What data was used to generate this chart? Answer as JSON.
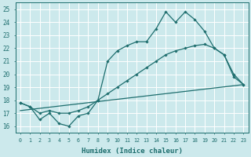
{
  "xlabel": "Humidex (Indice chaleur)",
  "xlim": [
    -0.5,
    23.5
  ],
  "ylim": [
    15.5,
    25.5
  ],
  "yticks": [
    16,
    17,
    18,
    19,
    20,
    21,
    22,
    23,
    24,
    25
  ],
  "xticks": [
    0,
    1,
    2,
    3,
    4,
    5,
    6,
    7,
    8,
    9,
    10,
    11,
    12,
    13,
    14,
    15,
    16,
    17,
    18,
    19,
    20,
    21,
    22,
    23
  ],
  "bg_color": "#cce9ec",
  "grid_color": "#b8d8dc",
  "line_color": "#1e6e6e",
  "line1_x": [
    0,
    1,
    2,
    3,
    4,
    5,
    6,
    7,
    8,
    9,
    10,
    11,
    12,
    13,
    14,
    15,
    16,
    17,
    18,
    19,
    20,
    21,
    22,
    23
  ],
  "line1_y": [
    17.8,
    17.5,
    16.5,
    17.0,
    16.2,
    16.0,
    16.8,
    17.0,
    18.0,
    21.0,
    21.8,
    22.2,
    22.5,
    22.5,
    23.5,
    24.8,
    24.0,
    24.8,
    24.2,
    23.3,
    22.0,
    21.5,
    19.8,
    19.2
  ],
  "line2_x": [
    0,
    1,
    2,
    3,
    4,
    5,
    6,
    7,
    8,
    9,
    10,
    11,
    12,
    13,
    14,
    15,
    16,
    17,
    18,
    19,
    20,
    21,
    22,
    23
  ],
  "line2_y": [
    17.8,
    17.5,
    17.0,
    17.2,
    17.0,
    17.0,
    17.2,
    17.5,
    18.0,
    18.5,
    19.0,
    19.5,
    20.0,
    20.5,
    21.0,
    21.5,
    21.8,
    22.0,
    22.2,
    22.3,
    22.0,
    21.5,
    20.0,
    19.2
  ],
  "line3_x": [
    0,
    23
  ],
  "line3_y": [
    17.2,
    19.2
  ]
}
